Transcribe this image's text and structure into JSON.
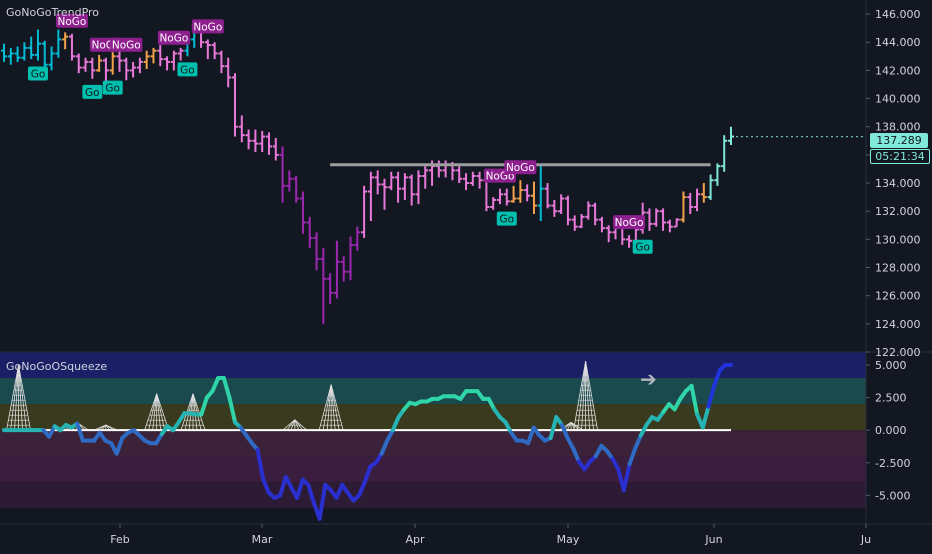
{
  "top_pane": {
    "title": "GoNoGoTrendPro"
  },
  "bottom_pane": {
    "title": "GoNoGoOSqueeze"
  },
  "price_tags": {
    "last_price": "137.289",
    "countdown": "05:21:34"
  },
  "colors": {
    "background": "#131722",
    "go_strong": "#00bcd4",
    "go_weak": "#7fe8d8",
    "nogo_strong": "#9c27b0",
    "nogo_weak": "#e879d8",
    "neutral": "#f2a24a",
    "resistance": "#9e9e9e",
    "zero_line": "#ffffff",
    "axis_text": "#d1d4dc"
  },
  "chart_data": [
    {
      "type": "candlestick",
      "title": "GoNoGoTrendPro",
      "y_ticks": [
        "146.000",
        "144.000",
        "142.000",
        "140.000",
        "138.000",
        "136.000",
        "134.000",
        "132.000",
        "130.000",
        "128.000",
        "126.000",
        "124.000",
        "122.000"
      ],
      "ylim": [
        122,
        147
      ],
      "x_ticks": [
        "Feb",
        "Mar",
        "Apr",
        "May",
        "Jun",
        "Ju"
      ],
      "last_price": 137.289,
      "resistance_level": 135.3,
      "bars": [
        [
          143.4,
          143.0,
          143.9,
          142.6,
          "go"
        ],
        [
          143.0,
          143.2,
          143.6,
          142.4,
          "go"
        ],
        [
          143.2,
          142.9,
          143.7,
          142.6,
          "go"
        ],
        [
          142.9,
          143.6,
          144.0,
          142.7,
          "go"
        ],
        [
          143.6,
          143.1,
          144.4,
          142.8,
          "go"
        ],
        [
          143.1,
          143.9,
          144.9,
          142.7,
          "go"
        ],
        [
          143.9,
          142.4,
          144.1,
          142.1,
          "go"
        ],
        [
          142.4,
          143.2,
          143.7,
          142.0,
          "go"
        ],
        [
          143.2,
          144.2,
          144.9,
          142.9,
          "go"
        ],
        [
          144.2,
          144.4,
          144.7,
          143.5,
          "neutral"
        ],
        [
          144.4,
          143.0,
          144.6,
          142.7,
          "nogo"
        ],
        [
          143.0,
          142.2,
          143.2,
          141.8,
          "nogo"
        ],
        [
          142.2,
          142.6,
          142.9,
          141.9,
          "nogo"
        ],
        [
          142.6,
          142.0,
          142.9,
          141.4,
          "nogo"
        ],
        [
          142.0,
          142.7,
          143.1,
          141.9,
          "neutral"
        ],
        [
          142.7,
          142.0,
          142.9,
          141.2,
          "nogo"
        ],
        [
          142.0,
          143.0,
          143.3,
          141.7,
          "neutral"
        ],
        [
          143.0,
          142.7,
          143.6,
          141.9,
          "nogo"
        ],
        [
          142.7,
          142.0,
          142.9,
          141.3,
          "nogo"
        ],
        [
          142.0,
          142.2,
          142.6,
          141.5,
          "nogo"
        ],
        [
          142.2,
          142.6,
          142.9,
          141.8,
          "nogo"
        ],
        [
          142.6,
          143.0,
          143.4,
          142.1,
          "neutral"
        ],
        [
          143.0,
          143.4,
          143.6,
          142.5,
          "neutral"
        ],
        [
          143.4,
          142.8,
          143.8,
          142.3,
          "nogo"
        ],
        [
          142.8,
          142.6,
          143.0,
          142.0,
          "nogo"
        ],
        [
          142.6,
          143.2,
          143.4,
          142.0,
          "nogo"
        ],
        [
          143.2,
          143.4,
          143.6,
          142.7,
          "nogo"
        ],
        [
          143.4,
          144.2,
          144.6,
          143.0,
          "go"
        ],
        [
          144.2,
          145.0,
          145.2,
          143.6,
          "go"
        ],
        [
          145.0,
          144.0,
          145.2,
          143.6,
          "nogo"
        ],
        [
          144.0,
          143.8,
          144.2,
          142.8,
          "nogo"
        ],
        [
          143.8,
          143.2,
          144.0,
          142.8,
          "nogo"
        ],
        [
          143.2,
          142.3,
          143.4,
          141.8,
          "nogo"
        ],
        [
          142.3,
          141.5,
          142.9,
          140.8,
          "nogo"
        ],
        [
          141.5,
          138.0,
          141.8,
          137.3,
          "nogo"
        ],
        [
          138.0,
          137.4,
          138.8,
          136.9,
          "nogo"
        ],
        [
          137.4,
          137.0,
          137.8,
          136.4,
          "nogo"
        ],
        [
          137.0,
          136.8,
          137.8,
          136.2,
          "nogo"
        ],
        [
          136.8,
          137.3,
          137.7,
          136.2,
          "nogo"
        ],
        [
          137.3,
          136.6,
          137.6,
          136.0,
          "nogo"
        ],
        [
          136.6,
          136.0,
          137.2,
          135.6,
          "nogo"
        ],
        [
          136.0,
          133.8,
          136.6,
          132.6,
          "nogo"
        ],
        [
          133.8,
          134.3,
          134.9,
          133.4,
          "nogo"
        ],
        [
          134.3,
          132.9,
          134.5,
          132.6,
          "nogo"
        ],
        [
          132.9,
          131.2,
          133.4,
          130.4,
          "nogo"
        ],
        [
          131.2,
          130.1,
          131.6,
          129.4,
          "nogo"
        ],
        [
          130.1,
          128.6,
          130.5,
          127.8,
          "nogo"
        ],
        [
          128.6,
          127.2,
          129.4,
          124.0,
          "nogo"
        ],
        [
          127.2,
          126.2,
          127.6,
          125.4,
          "nogo"
        ],
        [
          126.2,
          128.4,
          129.9,
          125.8,
          "nogo"
        ],
        [
          128.4,
          127.7,
          128.8,
          127.0,
          "nogo"
        ],
        [
          127.7,
          129.6,
          130.2,
          127.1,
          "nogo"
        ],
        [
          129.6,
          130.5,
          130.9,
          129.2,
          "nogo"
        ],
        [
          130.5,
          133.4,
          133.8,
          130.1,
          "nogo"
        ],
        [
          133.4,
          134.4,
          134.8,
          131.3,
          "nogo"
        ],
        [
          134.4,
          133.9,
          134.9,
          133.2,
          "nogo"
        ],
        [
          133.9,
          133.7,
          134.3,
          132.1,
          "nogo"
        ],
        [
          133.7,
          134.4,
          134.8,
          133.5,
          "nogo"
        ],
        [
          134.4,
          133.6,
          134.8,
          132.6,
          "nogo"
        ],
        [
          133.6,
          134.4,
          134.7,
          132.8,
          "nogo"
        ],
        [
          134.4,
          133.2,
          134.6,
          132.4,
          "nogo"
        ],
        [
          133.2,
          134.5,
          134.9,
          132.5,
          "nogo"
        ],
        [
          134.5,
          134.9,
          135.2,
          133.6,
          "nogo"
        ],
        [
          134.9,
          135.2,
          135.6,
          133.8,
          "nogo"
        ],
        [
          135.2,
          134.9,
          135.6,
          134.4,
          "nogo"
        ],
        [
          134.9,
          135.3,
          135.6,
          134.4,
          "nogo"
        ],
        [
          135.3,
          134.9,
          135.5,
          134.2,
          "nogo"
        ],
        [
          134.9,
          134.3,
          135.2,
          134.0,
          "nogo"
        ],
        [
          134.3,
          134.0,
          134.7,
          133.5,
          "nogo"
        ],
        [
          134.0,
          134.5,
          134.8,
          133.8,
          "nogo"
        ],
        [
          134.5,
          134.2,
          134.8,
          133.6,
          "nogo"
        ],
        [
          134.2,
          132.3,
          134.5,
          132.0,
          "nogo"
        ],
        [
          132.3,
          132.8,
          133.0,
          132.1,
          "nogo"
        ],
        [
          132.8,
          133.2,
          133.6,
          132.5,
          "nogo"
        ],
        [
          133.2,
          132.7,
          133.6,
          132.4,
          "nogo"
        ],
        [
          132.7,
          132.9,
          133.8,
          132.6,
          "neutral"
        ],
        [
          132.9,
          133.5,
          134.2,
          132.6,
          "neutral"
        ],
        [
          133.5,
          133.1,
          133.9,
          132.7,
          "nogo"
        ],
        [
          133.1,
          132.4,
          134.1,
          131.8,
          "neutral"
        ],
        [
          132.4,
          133.6,
          135.3,
          131.3,
          "go"
        ],
        [
          133.6,
          132.4,
          134.0,
          132.2,
          "nogo"
        ],
        [
          132.4,
          132.0,
          132.8,
          131.6,
          "nogo"
        ],
        [
          132.0,
          132.9,
          133.2,
          131.8,
          "nogo"
        ],
        [
          132.9,
          131.4,
          133.1,
          131.0,
          "nogo"
        ],
        [
          131.4,
          130.9,
          131.7,
          130.6,
          "nogo"
        ],
        [
          130.9,
          131.6,
          131.8,
          130.8,
          "nogo"
        ],
        [
          131.6,
          132.4,
          132.7,
          131.4,
          "nogo"
        ],
        [
          132.4,
          131.4,
          132.6,
          131.0,
          "nogo"
        ],
        [
          131.4,
          130.8,
          131.6,
          130.5,
          "nogo"
        ],
        [
          130.8,
          130.5,
          131.0,
          129.8,
          "nogo"
        ],
        [
          130.5,
          131.0,
          131.3,
          130.0,
          "nogo"
        ],
        [
          131.0,
          130.0,
          131.2,
          129.6,
          "nogo"
        ],
        [
          130.0,
          129.9,
          130.3,
          129.4,
          "nogo"
        ],
        [
          129.9,
          130.7,
          131.1,
          129.6,
          "nogo"
        ],
        [
          130.7,
          131.9,
          132.6,
          130.4,
          "nogo"
        ],
        [
          131.9,
          131.1,
          132.2,
          130.6,
          "nogo"
        ],
        [
          131.1,
          132.0,
          132.2,
          130.9,
          "nogo"
        ],
        [
          132.0,
          131.2,
          132.2,
          130.6,
          "nogo"
        ],
        [
          131.2,
          130.9,
          131.4,
          130.5,
          "nogo"
        ],
        [
          130.9,
          131.4,
          131.5,
          130.9,
          "nogo"
        ],
        [
          131.4,
          133.0,
          133.4,
          131.2,
          "neutral"
        ],
        [
          133.0,
          132.3,
          133.3,
          131.8,
          "nogo"
        ],
        [
          132.3,
          133.2,
          133.6,
          132.0,
          "nogo"
        ],
        [
          133.2,
          133.0,
          134.0,
          132.6,
          "neutral"
        ],
        [
          133.0,
          134.2,
          134.6,
          132.8,
          "go"
        ],
        [
          134.2,
          135.2,
          135.4,
          133.8,
          "go"
        ],
        [
          135.2,
          137.0,
          137.4,
          134.8,
          "go"
        ],
        [
          137.0,
          137.3,
          138.0,
          136.7,
          "go"
        ]
      ],
      "annotations": [
        {
          "label": "Go",
          "bar": 5,
          "pos": "below"
        },
        {
          "label": "NoGo",
          "bar": 10,
          "pos": "above"
        },
        {
          "label": "NoGo",
          "bar": 15,
          "pos": "above"
        },
        {
          "label": "Go",
          "bar": 13,
          "pos": "below"
        },
        {
          "label": "Go",
          "bar": 16,
          "pos": "below"
        },
        {
          "label": "NoGo",
          "bar": 18,
          "pos": "above"
        },
        {
          "label": "NoGo",
          "bar": 25,
          "pos": "above"
        },
        {
          "label": "Go",
          "bar": 27,
          "pos": "below"
        },
        {
          "label": "NoGo",
          "bar": 30,
          "pos": "above"
        },
        {
          "label": "NoGo",
          "bar": 73,
          "pos": "above"
        },
        {
          "label": "Go",
          "bar": 74,
          "pos": "below"
        },
        {
          "label": "NoGo",
          "bar": 76,
          "pos": "above"
        },
        {
          "label": "NoGo",
          "bar": 92,
          "pos": "above"
        },
        {
          "label": "Go",
          "bar": 94,
          "pos": "below"
        }
      ]
    },
    {
      "type": "line",
      "title": "GoNoGoOSqueeze",
      "y_ticks": [
        "5.000",
        "2.500",
        "0.000",
        "-2.500",
        "-5.000"
      ],
      "ylim": [
        -7.2,
        6.0
      ],
      "zones": [
        {
          "from": 4.0,
          "to": 6.0,
          "color": "#1a1f66"
        },
        {
          "from": 2.0,
          "to": 4.0,
          "color": "#1b4a4e"
        },
        {
          "from": 0.0,
          "to": 2.0,
          "color": "#3a3a1e"
        },
        {
          "from": -2.0,
          "to": 0.0,
          "color": "#3b2238"
        },
        {
          "from": -4.0,
          "to": -2.0,
          "color": "#3a1d3f"
        },
        {
          "from": -6.0,
          "to": -4.0,
          "color": "#2d1b36"
        }
      ],
      "oscillator": [
        0,
        0,
        0,
        0,
        0,
        0,
        0,
        0,
        -0.5,
        0.3,
        0,
        0.4,
        0.2,
        0.5,
        -0.8,
        -0.8,
        -0.8,
        -0.2,
        -0.8,
        -1.0,
        -1.8,
        -0.6,
        -0.2,
        0,
        -0.4,
        -0.8,
        -1.0,
        -1.0,
        -0.3,
        0.3,
        0,
        0.6,
        1.3,
        1.3,
        1.2,
        1.2,
        2.5,
        3.0,
        4.0,
        4.0,
        2.5,
        0.6,
        0.2,
        -0.4,
        -1.0,
        -1.5,
        -3.8,
        -4.8,
        -5.2,
        -5.0,
        -3.6,
        -4.4,
        -5.2,
        -3.8,
        -4.2,
        -5.6,
        -6.8,
        -4.2,
        -4.6,
        -5.2,
        -4.2,
        -4.8,
        -5.4,
        -5.0,
        -4.0,
        -2.8,
        -2.5,
        -1.8,
        -0.8,
        0,
        1.0,
        1.6,
        2.1,
        2.0,
        2.2,
        2.2,
        2.4,
        2.4,
        2.6,
        2.6,
        2.6,
        2.4,
        3.0,
        3.0,
        3.0,
        2.4,
        2.4,
        1.6,
        1.0,
        0.6,
        -0.2,
        -0.8,
        -0.8,
        -1.0,
        0.2,
        -0.4,
        -0.8,
        -0.6,
        1.0,
        0.4,
        -0.6,
        -1.4,
        -2.4,
        -3.0,
        -2.4,
        -2.0,
        -1.2,
        -1.6,
        -2.2,
        -3.0,
        -4.6,
        -2.6,
        -1.4,
        -0.4,
        0.4,
        1.0,
        0.8,
        1.4,
        2.0,
        1.6,
        2.4,
        3.0,
        3.4,
        1.2,
        0.2,
        1.8,
        3.4,
        4.6,
        5.0,
        5.0
      ],
      "zero_line": 0,
      "squeeze_marks": [
        {
          "x": 0.02,
          "h": 5.0
        },
        {
          "x": 0.1,
          "h": 0.6
        },
        {
          "x": 0.14,
          "h": 0.4
        },
        {
          "x": 0.21,
          "h": 2.8
        },
        {
          "x": 0.26,
          "h": 2.8
        },
        {
          "x": 0.4,
          "h": 0.8
        },
        {
          "x": 0.45,
          "h": 3.5
        },
        {
          "x": 0.78,
          "h": 0.6
        },
        {
          "x": 0.8,
          "h": 5.3
        }
      ]
    }
  ]
}
